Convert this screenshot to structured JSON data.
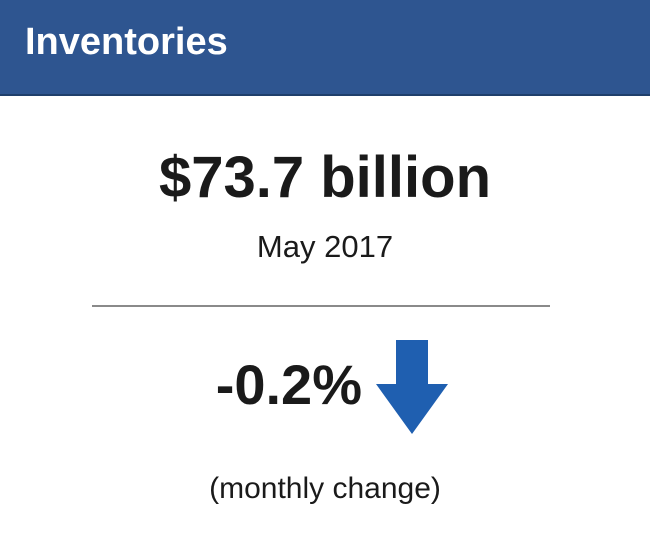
{
  "header": {
    "title": "Inventories"
  },
  "metric": {
    "value": "$73.7 billion",
    "period": "May 2017",
    "change": "-0.2%",
    "change_direction_icon": "arrow-down-icon",
    "change_note": "(monthly change)"
  },
  "colors": {
    "header_background": "#2e5590",
    "header_text": "#ffffff",
    "arrow": "#1f5fb0",
    "divider": "#8a8a8a",
    "text": "#1a1a1a"
  }
}
